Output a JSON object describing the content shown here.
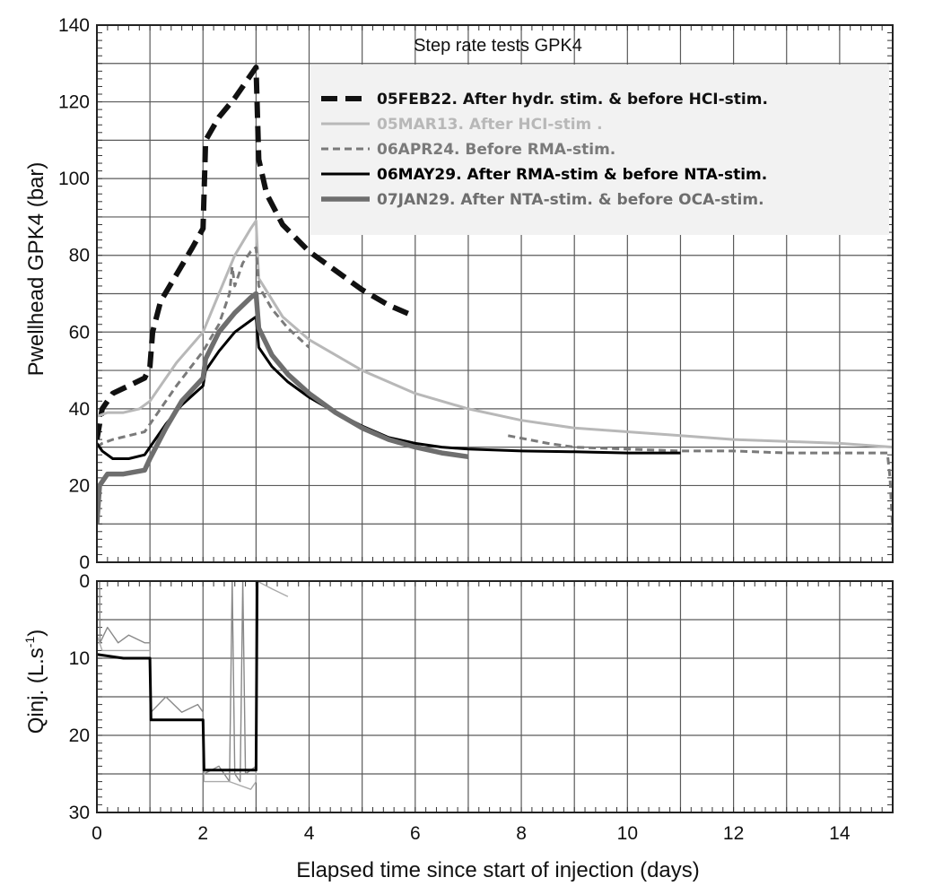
{
  "chart_data": [
    {
      "panel": "upper",
      "type": "line",
      "title": "Step rate tests GPK4",
      "xlabel": "",
      "ylabel": "Pwellhead GPK4 (bar)",
      "xlim": [
        0,
        15
      ],
      "ylim": [
        0,
        140
      ],
      "xticks": [],
      "yticks": [
        "0",
        "20",
        "40",
        "60",
        "80",
        "100",
        "120",
        "140"
      ],
      "grid": true,
      "legend_position": "top-right",
      "series": [
        {
          "name": "05FEB22. After hydr. stim. & before HCI-stim.",
          "color": "#111111",
          "style": "dashed-thick",
          "points": [
            [
              0,
              32
            ],
            [
              0.1,
              40
            ],
            [
              0.3,
              44
            ],
            [
              0.6,
              46
            ],
            [
              0.9,
              48
            ],
            [
              1,
              51
            ],
            [
              1.05,
              60
            ],
            [
              1.2,
              68
            ],
            [
              1.5,
              75
            ],
            [
              1.8,
              82
            ],
            [
              2,
              87
            ],
            [
              2.05,
              110
            ],
            [
              2.3,
              116
            ],
            [
              2.6,
              121
            ],
            [
              2.9,
              127
            ],
            [
              3,
              129
            ],
            [
              3.05,
              105
            ],
            [
              3.2,
              96
            ],
            [
              3.5,
              88
            ],
            [
              4,
              81
            ],
            [
              4.5,
              76
            ],
            [
              5,
              71
            ],
            [
              5.5,
              67
            ],
            [
              6,
              64
            ]
          ]
        },
        {
          "name": "05MAR13. After HCI-stim .",
          "color": "#b8b8b8",
          "style": "solid",
          "points": [
            [
              0,
              38
            ],
            [
              0.2,
              39
            ],
            [
              0.5,
              39
            ],
            [
              0.8,
              40
            ],
            [
              1,
              42
            ],
            [
              1.5,
              52
            ],
            [
              2,
              60
            ],
            [
              2.3,
              70
            ],
            [
              2.6,
              80
            ],
            [
              2.9,
              87
            ],
            [
              3,
              89
            ],
            [
              3.05,
              74
            ],
            [
              3.5,
              64
            ],
            [
              4,
              58
            ],
            [
              5,
              50
            ],
            [
              6,
              44
            ],
            [
              7,
              40
            ],
            [
              8,
              37
            ],
            [
              9,
              35
            ],
            [
              10,
              34
            ],
            [
              11,
              33
            ],
            [
              12,
              32
            ],
            [
              13,
              31.5
            ],
            [
              14,
              31
            ],
            [
              15,
              30
            ]
          ]
        },
        {
          "name": "06APR24. Before RMA-stim.",
          "color": "#7a7a7a",
          "style": "dashed",
          "points": [
            [
              0,
              30
            ],
            [
              0.1,
              31
            ],
            [
              0.3,
              32
            ],
            [
              0.6,
              33
            ],
            [
              0.9,
              34
            ],
            [
              1,
              36
            ],
            [
              1.5,
              46
            ],
            [
              2,
              55
            ],
            [
              2.3,
              62
            ],
            [
              2.5,
              70
            ],
            [
              2.55,
              77
            ],
            [
              2.6,
              72
            ],
            [
              2.75,
              78
            ],
            [
              2.9,
              81
            ],
            [
              3,
              82
            ],
            [
              3.05,
              72
            ],
            [
              3.3,
              66
            ],
            [
              3.6,
              61
            ],
            [
              4,
              56
            ],
            null,
            [
              7.75,
              33
            ],
            [
              8.5,
              31
            ],
            [
              9,
              30
            ],
            [
              10,
              29.5
            ],
            [
              11,
              29
            ],
            [
              12,
              29
            ],
            [
              13,
              28.5
            ],
            [
              14,
              28.5
            ],
            [
              14.9,
              28.5
            ],
            [
              14.95,
              22
            ],
            [
              15,
              8
            ]
          ]
        },
        {
          "name": "06MAY29. After RMA-stim & before NTA-stim.",
          "color": "#000000",
          "style": "solid",
          "points": [
            [
              0,
              31
            ],
            [
              0.1,
              29
            ],
            [
              0.3,
              27
            ],
            [
              0.6,
              27
            ],
            [
              0.9,
              28
            ],
            [
              1,
              30
            ],
            [
              1.3,
              36
            ],
            [
              1.6,
              41
            ],
            [
              2,
              46
            ],
            [
              2.05,
              50
            ],
            [
              2.3,
              55
            ],
            [
              2.6,
              60
            ],
            [
              2.9,
              63
            ],
            [
              3,
              64
            ],
            [
              3.05,
              56
            ],
            [
              3.3,
              51
            ],
            [
              3.6,
              47
            ],
            [
              4,
              43
            ],
            [
              4.5,
              39
            ],
            [
              5,
              35.5
            ],
            [
              5.5,
              32.5
            ],
            [
              6,
              31
            ],
            [
              6.5,
              30
            ],
            [
              7,
              29.5
            ],
            [
              8,
              29
            ],
            [
              9,
              28.8
            ],
            [
              10,
              28.5
            ],
            [
              11,
              28.5
            ]
          ]
        },
        {
          "name": "07JAN29. After NTA-stim. & before OCA-stim.",
          "color": "#6e6e6e",
          "style": "solid-thick",
          "points": [
            [
              0,
              10
            ],
            [
              0.05,
              20
            ],
            [
              0.2,
              23
            ],
            [
              0.5,
              23
            ],
            [
              0.9,
              24
            ],
            [
              1,
              27
            ],
            [
              1.3,
              35
            ],
            [
              1.6,
              42
            ],
            [
              2,
              48
            ],
            [
              2.05,
              53
            ],
            [
              2.3,
              60
            ],
            [
              2.6,
              65
            ],
            [
              2.9,
              69
            ],
            [
              3,
              70
            ],
            [
              3.05,
              61
            ],
            [
              3.3,
              54
            ],
            [
              3.6,
              49
            ],
            [
              4,
              44
            ],
            [
              4.5,
              39
            ],
            [
              5,
              35
            ],
            [
              5.5,
              32
            ],
            [
              6,
              30
            ],
            [
              6.5,
              28.5
            ],
            [
              7,
              27.5
            ]
          ]
        }
      ]
    },
    {
      "panel": "lower",
      "type": "line",
      "title": "",
      "xlabel": "Elapsed time since start of injection (days)",
      "ylabel": "Qinj. (L.s",
      "ylabel_superscript": "-1",
      "ylabel_close": ")",
      "xlim": [
        0,
        15
      ],
      "ylim": [
        0,
        30
      ],
      "y_inverted": true,
      "xticks": [
        "0",
        "2",
        "4",
        "6",
        "8",
        "10",
        "12",
        "14"
      ],
      "yticks": [
        "0",
        "10",
        "20",
        "30"
      ],
      "grid": true,
      "series": [
        {
          "name": "05FEB22. After hydr. stim. & before HCI-stim.",
          "color": "#888888",
          "style": "thin",
          "points": [
            [
              0,
              0
            ],
            [
              0.05,
              0
            ],
            [
              0.06,
              8
            ],
            [
              0.2,
              6
            ],
            [
              0.4,
              8
            ],
            [
              0.6,
              7
            ],
            [
              0.9,
              8
            ],
            [
              1,
              8
            ],
            [
              1.02,
              17
            ],
            [
              1.3,
              15
            ],
            [
              1.6,
              17
            ],
            [
              1.9,
              16
            ],
            [
              2,
              17
            ],
            [
              2.02,
              25
            ],
            [
              2.3,
              24
            ],
            [
              2.5,
              26
            ],
            [
              2.55,
              0
            ],
            [
              2.6,
              25
            ],
            [
              2.7,
              26
            ],
            [
              2.75,
              0
            ],
            [
              2.8,
              25
            ],
            [
              3,
              24
            ],
            [
              3.02,
              0
            ]
          ]
        },
        {
          "name": "05MAR13. After HCI-stim .",
          "color": "#aaaaaa",
          "style": "thin",
          "points": [
            [
              0,
              7
            ],
            [
              0.1,
              9
            ],
            [
              0.5,
              9
            ],
            [
              1,
              9
            ],
            [
              1.02,
              18
            ],
            [
              1.5,
              18
            ],
            [
              2,
              18
            ],
            [
              2.02,
              26
            ],
            [
              2.5,
              26
            ],
            [
              2.9,
              27
            ],
            [
              3,
              26
            ],
            [
              3.02,
              0
            ],
            [
              3.3,
              1
            ],
            [
              3.6,
              2
            ],
            null,
            [
              15,
              8
            ],
            [
              15,
              16
            ]
          ]
        },
        {
          "name": "07JAN29. After NTA-stim. & before OCA-stim.",
          "color": "#000000",
          "style": "solid",
          "points": [
            [
              0,
              9.5
            ],
            [
              0.5,
              10
            ],
            [
              1,
              10
            ],
            [
              1.02,
              18
            ],
            [
              1.5,
              18
            ],
            [
              2,
              18
            ],
            [
              2.02,
              24.5
            ],
            [
              2.5,
              24.5
            ],
            [
              3,
              24.5
            ],
            [
              3.02,
              0
            ]
          ]
        }
      ]
    }
  ]
}
